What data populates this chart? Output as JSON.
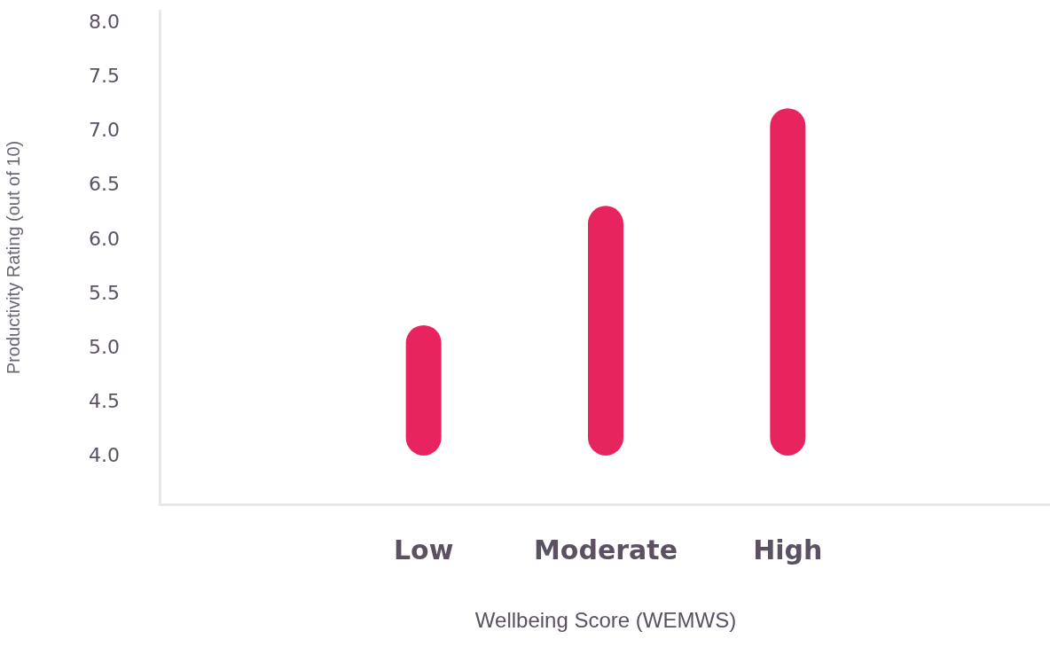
{
  "chart_data": {
    "type": "bar",
    "xlabel": "Wellbeing Score (WEMWS)",
    "ylabel": "Productivity Rating (out of 10)",
    "categories": [
      "Low",
      "Moderate",
      "High"
    ],
    "base": [
      4,
      4,
      4
    ],
    "values": [
      1.2,
      2.3,
      3.2
    ],
    "color": "#e8245f",
    "ylim": [
      3.55,
      8.1
    ],
    "yticks": [
      {
        "value": 4,
        "label": "4.0"
      },
      {
        "value": 4.5,
        "label": "4.5"
      },
      {
        "value": 5,
        "label": "5.0"
      },
      {
        "value": 5.5,
        "label": "5.5"
      },
      {
        "value": 6,
        "label": "6.0"
      },
      {
        "value": 6.5,
        "label": "6.5"
      },
      {
        "value": 7,
        "label": "7.0"
      },
      {
        "value": 7.5,
        "label": "7.5"
      },
      {
        "value": 8,
        "label": "8.0"
      }
    ],
    "grid": false
  }
}
